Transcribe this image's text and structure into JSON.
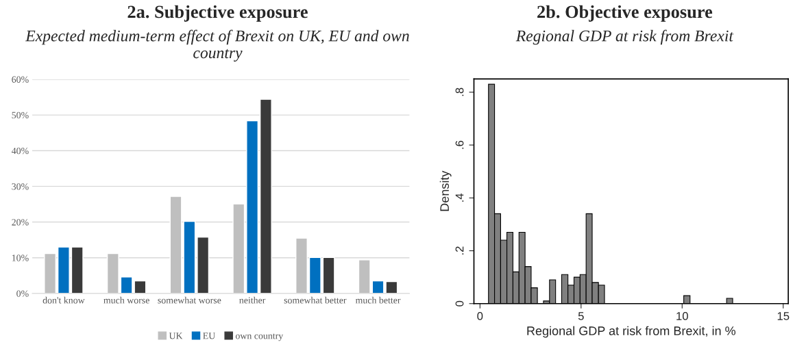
{
  "chart_data": [
    {
      "type": "bar",
      "title": "2a. Subjective exposure",
      "subtitle": "Expected medium-term effect of Brexit on UK, EU and own country",
      "categories": [
        "don't know",
        "much worse",
        "somewhat worse",
        "neither",
        "somewhat better",
        "much better"
      ],
      "series": [
        {
          "name": "UK",
          "color": "#bfbfbf",
          "values": [
            11.2,
            11.2,
            27.2,
            25.1,
            15.5,
            9.4
          ]
        },
        {
          "name": "EU",
          "color": "#0070c0",
          "values": [
            13.0,
            4.6,
            20.2,
            48.4,
            10.1,
            3.5
          ]
        },
        {
          "name": "own country",
          "color": "#3a3a3a",
          "values": [
            13.0,
            3.5,
            15.8,
            54.4,
            10.1,
            3.3
          ]
        }
      ],
      "ylim": [
        0,
        60
      ],
      "yticks": [
        {
          "value": 0,
          "label": "0%"
        },
        {
          "value": 10,
          "label": "10%"
        },
        {
          "value": 20,
          "label": "20%"
        },
        {
          "value": 30,
          "label": "30%"
        },
        {
          "value": 40,
          "label": "40%"
        },
        {
          "value": 50,
          "label": "50%"
        },
        {
          "value": 60,
          "label": "60%"
        }
      ],
      "grid": "y",
      "legend": "bottom"
    },
    {
      "type": "histogram",
      "title": "2b. Objective exposure",
      "subtitle": "Regional GDP at risk from Brexit",
      "xlabel": "Regional GDP at risk from Brexit, in %",
      "ylabel": "Density",
      "color": "#808080",
      "bins": [
        0.42,
        0.72,
        1.02,
        1.33,
        1.63,
        1.93,
        2.23,
        2.53,
        2.84,
        3.14,
        3.44,
        3.74,
        4.04,
        4.35,
        4.65,
        4.95,
        5.25,
        5.55,
        5.86,
        6.16,
        6.46,
        6.76,
        7.06,
        7.37,
        7.67,
        7.97,
        8.27,
        8.57,
        8.88,
        9.18,
        9.48,
        9.78,
        10.08,
        10.39,
        10.69,
        10.99,
        11.29,
        11.59,
        11.9,
        12.2,
        12.5
      ],
      "values": [
        0.83,
        0.34,
        0.24,
        0.27,
        0.12,
        0.27,
        0.14,
        0.06,
        0,
        0.01,
        0.09,
        0,
        0.11,
        0.07,
        0.1,
        0.11,
        0.34,
        0.08,
        0.07,
        0,
        0,
        0,
        0,
        0,
        0,
        0,
        0,
        0,
        0,
        0,
        0,
        0,
        0.03,
        0,
        0,
        0,
        0,
        0,
        0,
        0.02
      ],
      "xlim": [
        -0.3,
        15.25
      ],
      "xticks": [
        0,
        5,
        10,
        15
      ],
      "ylim": [
        0,
        0.85
      ],
      "yticks": [
        {
          "value": 0,
          "label": "0"
        },
        {
          "value": 0.2,
          "label": ".2"
        },
        {
          "value": 0.4,
          "label": ".4"
        },
        {
          "value": 0.6,
          "label": ".6"
        },
        {
          "value": 0.8,
          "label": ".8"
        }
      ],
      "grid": false
    }
  ]
}
